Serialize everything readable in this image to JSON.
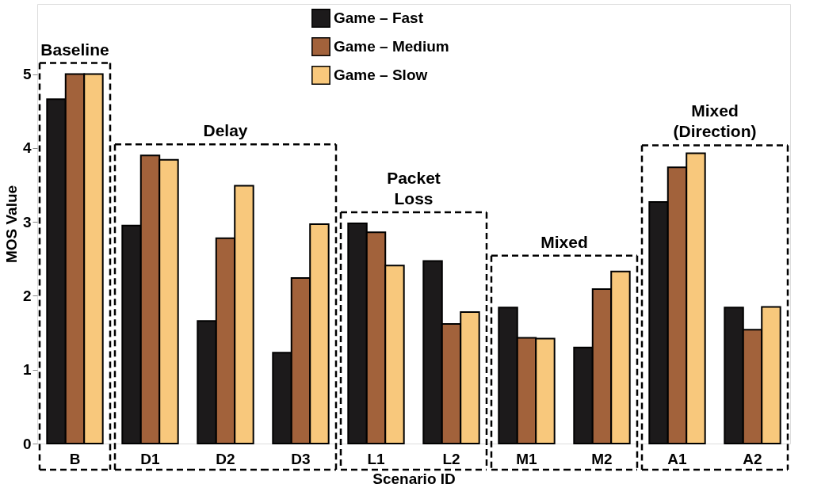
{
  "chart_data": {
    "type": "bar",
    "xlabel": "Scenario ID",
    "ylabel": "MOS Value",
    "categories": [
      "B",
      "D1",
      "D2",
      "D3",
      "L1",
      "L2",
      "M1",
      "M2",
      "A1",
      "A2"
    ],
    "series": [
      {
        "name": "Game – Fast",
        "color": "#1c1a1b",
        "values": [
          4.66,
          2.95,
          1.66,
          1.23,
          2.98,
          2.47,
          1.84,
          1.3,
          3.27,
          1.84
        ]
      },
      {
        "name": "Game – Medium",
        "color": "#a2623b",
        "values": [
          5.0,
          3.9,
          2.78,
          2.24,
          2.86,
          1.62,
          1.43,
          2.09,
          3.74,
          1.54
        ]
      },
      {
        "name": "Game – Slow",
        "color": "#f8c87c",
        "values": [
          5.0,
          3.84,
          3.49,
          2.97,
          2.41,
          1.78,
          1.42,
          2.33,
          3.93,
          1.85
        ]
      }
    ],
    "ylim": [
      0,
      5.95
    ],
    "yticks": [
      0,
      1,
      2,
      3,
      4,
      5
    ],
    "grid": false,
    "legend": "top",
    "annotations": [
      "Baseline",
      "Delay",
      "Packet Loss",
      "Mixed",
      "Mixed (Direction)"
    ]
  }
}
